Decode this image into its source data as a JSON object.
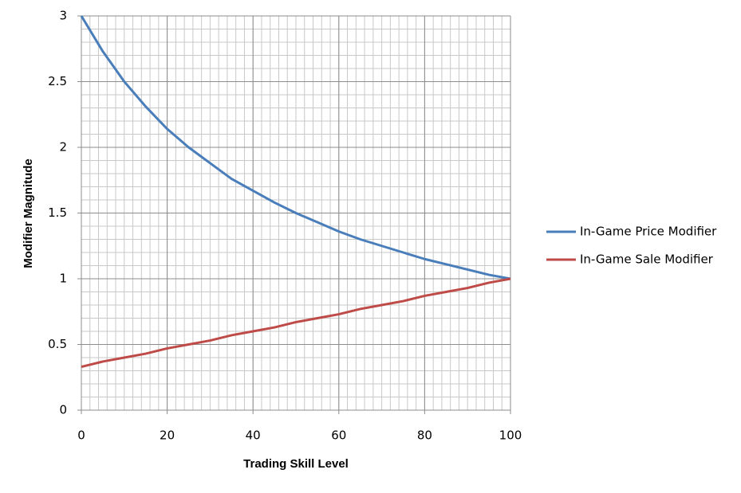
{
  "chart_data": {
    "type": "line",
    "x_label": "Trading Skill Level",
    "y_label": "Modifier Magnitude",
    "x": [
      0,
      5,
      10,
      15,
      20,
      25,
      30,
      35,
      40,
      45,
      50,
      55,
      60,
      65,
      70,
      75,
      80,
      85,
      90,
      95,
      100
    ],
    "series": [
      {
        "name": "In-Game Price Modifier",
        "color": "#4a7ebb",
        "values": [
          3.0,
          2.73,
          2.5,
          2.31,
          2.14,
          2.0,
          1.88,
          1.76,
          1.67,
          1.58,
          1.5,
          1.43,
          1.36,
          1.3,
          1.25,
          1.2,
          1.15,
          1.11,
          1.07,
          1.03,
          1.0
        ]
      },
      {
        "name": "In-Game Sale Modifier",
        "color": "#be4b48",
        "values": [
          0.33,
          0.37,
          0.4,
          0.43,
          0.47,
          0.5,
          0.53,
          0.57,
          0.6,
          0.63,
          0.67,
          0.7,
          0.73,
          0.77,
          0.8,
          0.83,
          0.87,
          0.9,
          0.93,
          0.97,
          1.0
        ]
      }
    ],
    "xlim": [
      0,
      100
    ],
    "xticks": [
      0,
      20,
      40,
      60,
      80,
      100
    ],
    "ylim": [
      0,
      3
    ],
    "yticks": [
      0,
      0.5,
      1,
      1.5,
      2,
      2.5,
      3
    ],
    "grid": true,
    "minor_grid_x_step": 2,
    "minor_grid_y_step": 0.1,
    "legend": "right"
  }
}
